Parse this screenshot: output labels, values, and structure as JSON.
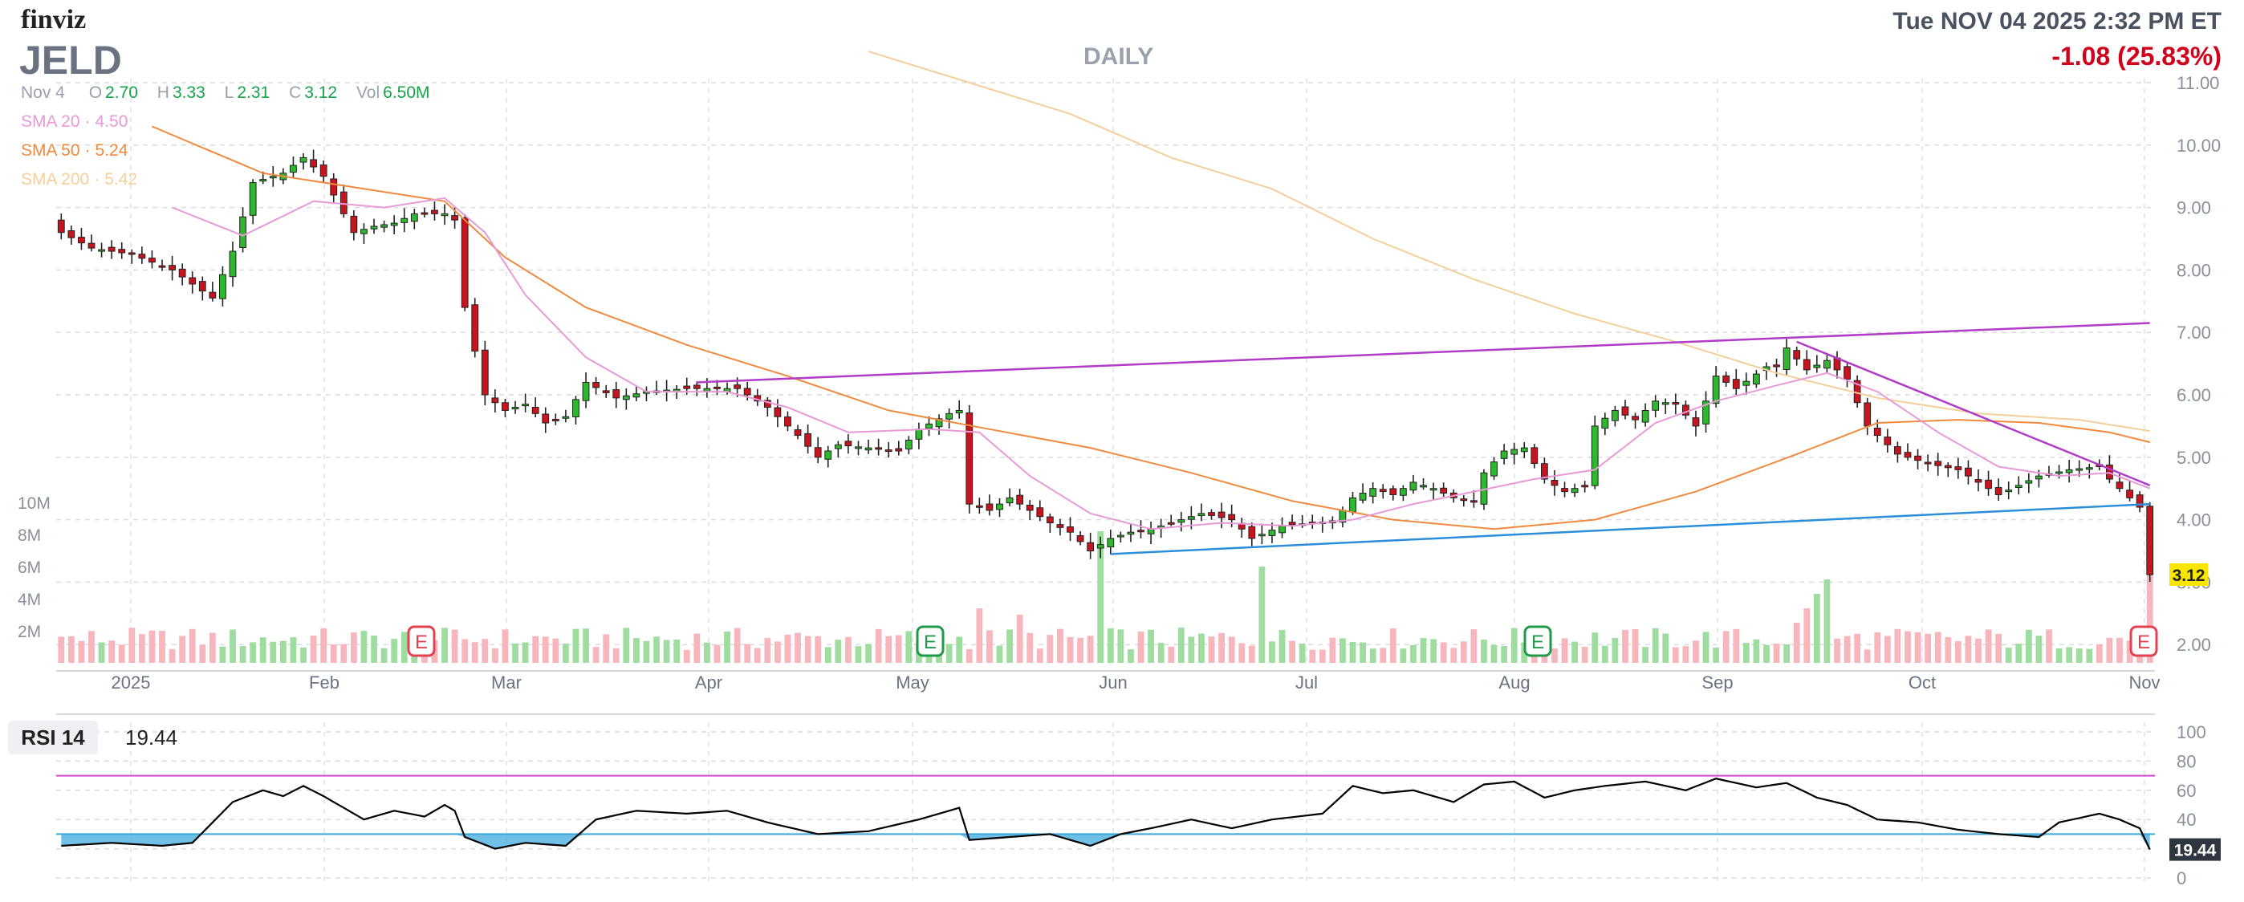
{
  "header": {
    "logo": "finviz",
    "ticker": "JELD",
    "period": "DAILY",
    "datetime": "Tue NOV 04 2025 2:32 PM ET",
    "change": "-1.08 (25.83%)"
  },
  "ohlc": {
    "date": "Nov 4",
    "o_label": "O",
    "o": "2.70",
    "h_label": "H",
    "h": "3.33",
    "l_label": "L",
    "l": "2.31",
    "c_label": "C",
    "c": "3.12",
    "vol_label": "Vol",
    "vol": "6.50M"
  },
  "sma": [
    {
      "label": "SMA 20",
      "value": "4.50",
      "color": "#e89ad6"
    },
    {
      "label": "SMA 50",
      "value": "5.24",
      "color": "#f08a3e"
    },
    {
      "label": "SMA 200",
      "value": "5.42",
      "color": "#f5cf9a"
    }
  ],
  "rsi": {
    "label": "RSI 14",
    "value": "19.44"
  },
  "colors": {
    "up": "#2db82d",
    "down": "#c8141e",
    "vol_up": "#9fdc9f",
    "vol_down": "#f7b6bc",
    "rsi_line": "#000000",
    "rsi_fill": "#56b4e3",
    "trend_purple": "#b03cc8",
    "trend_blue": "#2a8fd8"
  },
  "chart_data": {
    "type": "candlestick",
    "price_axis": {
      "ylim": [
        1.7,
        11.0
      ],
      "ticks": [
        "11.00",
        "10.00",
        "9.00",
        "8.00",
        "7.00",
        "6.00",
        "5.00",
        "4.00",
        "3.00",
        "2.00"
      ],
      "last_price_label": "3.12"
    },
    "volume_axis": {
      "ticks": [
        "10M",
        "8M",
        "6M",
        "4M",
        "2M"
      ]
    },
    "x_axis_labels": [
      "2025",
      "Feb",
      "Mar",
      "Apr",
      "May",
      "Jun",
      "Jul",
      "Aug",
      "Sep",
      "Oct",
      "Nov"
    ],
    "earnings_marker_label": "E",
    "earnings_markers": [
      {
        "label": "Feb",
        "style": "negative"
      },
      {
        "label": "May",
        "style": "positive"
      },
      {
        "label": "Aug",
        "style": "positive"
      },
      {
        "label": "Nov",
        "style": "negative"
      }
    ],
    "close_keypoints": [
      [
        0,
        8.6
      ],
      [
        3,
        8.35
      ],
      [
        7,
        8.25
      ],
      [
        11,
        8.0
      ],
      [
        15,
        7.55
      ],
      [
        17,
        8.3
      ],
      [
        19,
        9.4
      ],
      [
        22,
        9.55
      ],
      [
        24,
        9.8
      ],
      [
        26,
        9.5
      ],
      [
        27,
        9.2
      ],
      [
        29,
        8.6
      ],
      [
        31,
        8.7
      ],
      [
        33,
        8.75
      ],
      [
        35,
        8.9
      ],
      [
        38,
        8.9
      ],
      [
        39,
        8.8
      ],
      [
        40,
        7.4
      ],
      [
        42,
        6.0
      ],
      [
        44,
        5.75
      ],
      [
        46,
        5.85
      ],
      [
        48,
        5.55
      ],
      [
        50,
        5.65
      ],
      [
        52,
        6.2
      ],
      [
        55,
        5.95
      ],
      [
        58,
        6.05
      ],
      [
        62,
        6.1
      ],
      [
        65,
        6.1
      ],
      [
        67,
        6.1
      ],
      [
        70,
        5.8
      ],
      [
        73,
        5.35
      ],
      [
        75,
        5.0
      ],
      [
        77,
        5.2
      ],
      [
        80,
        5.15
      ],
      [
        83,
        5.1
      ],
      [
        85,
        5.45
      ],
      [
        88,
        5.7
      ],
      [
        89,
        5.75
      ],
      [
        90,
        4.25
      ],
      [
        92,
        4.15
      ],
      [
        94,
        4.35
      ],
      [
        96,
        4.15
      ],
      [
        98,
        3.95
      ],
      [
        100,
        3.8
      ],
      [
        102,
        3.5
      ],
      [
        104,
        3.7
      ],
      [
        106,
        3.8
      ],
      [
        108,
        3.85
      ],
      [
        110,
        3.95
      ],
      [
        113,
        4.1
      ],
      [
        116,
        4.0
      ],
      [
        118,
        3.7
      ],
      [
        121,
        3.9
      ],
      [
        124,
        3.95
      ],
      [
        126,
        3.95
      ],
      [
        128,
        4.35
      ],
      [
        130,
        4.5
      ],
      [
        132,
        4.4
      ],
      [
        134,
        4.6
      ],
      [
        136,
        4.5
      ],
      [
        138,
        4.35
      ],
      [
        140,
        4.3
      ],
      [
        141,
        4.75
      ],
      [
        143,
        5.1
      ],
      [
        145,
        5.15
      ],
      [
        147,
        4.65
      ],
      [
        149,
        4.45
      ],
      [
        151,
        4.55
      ],
      [
        152,
        5.5
      ],
      [
        154,
        5.75
      ],
      [
        156,
        5.6
      ],
      [
        158,
        5.9
      ],
      [
        160,
        5.85
      ],
      [
        162,
        5.5
      ],
      [
        164,
        6.3
      ],
      [
        166,
        6.1
      ],
      [
        169,
        6.45
      ],
      [
        170,
        6.45
      ],
      [
        171,
        6.75
      ],
      [
        173,
        6.4
      ],
      [
        175,
        6.55
      ],
      [
        177,
        6.25
      ],
      [
        179,
        5.5
      ],
      [
        182,
        5.05
      ],
      [
        185,
        4.9
      ],
      [
        188,
        4.8
      ],
      [
        190,
        4.6
      ],
      [
        192,
        4.4
      ],
      [
        194,
        4.55
      ],
      [
        196,
        4.7
      ],
      [
        199,
        4.8
      ],
      [
        202,
        4.85
      ],
      [
        203,
        4.65
      ],
      [
        205,
        4.35
      ],
      [
        206,
        4.2
      ],
      [
        207,
        3.12
      ]
    ],
    "sma20_keypoints": [
      [
        11,
        9.0
      ],
      [
        18,
        8.55
      ],
      [
        25,
        9.1
      ],
      [
        32,
        9.0
      ],
      [
        38,
        9.15
      ],
      [
        42,
        8.6
      ],
      [
        46,
        7.6
      ],
      [
        52,
        6.6
      ],
      [
        58,
        6.05
      ],
      [
        66,
        6.05
      ],
      [
        72,
        5.8
      ],
      [
        78,
        5.4
      ],
      [
        86,
        5.45
      ],
      [
        91,
        5.4
      ],
      [
        96,
        4.7
      ],
      [
        102,
        4.1
      ],
      [
        108,
        3.85
      ],
      [
        115,
        3.95
      ],
      [
        122,
        3.9
      ],
      [
        128,
        4.0
      ],
      [
        134,
        4.25
      ],
      [
        140,
        4.45
      ],
      [
        146,
        4.65
      ],
      [
        152,
        4.8
      ],
      [
        158,
        5.55
      ],
      [
        164,
        5.9
      ],
      [
        170,
        6.15
      ],
      [
        175,
        6.35
      ],
      [
        180,
        6.05
      ],
      [
        186,
        5.4
      ],
      [
        192,
        4.85
      ],
      [
        198,
        4.7
      ],
      [
        203,
        4.75
      ],
      [
        207,
        4.5
      ]
    ],
    "sma50_keypoints": [
      [
        9,
        10.3
      ],
      [
        20,
        9.55
      ],
      [
        30,
        9.3
      ],
      [
        38,
        9.1
      ],
      [
        44,
        8.2
      ],
      [
        52,
        7.4
      ],
      [
        62,
        6.8
      ],
      [
        72,
        6.3
      ],
      [
        82,
        5.75
      ],
      [
        92,
        5.45
      ],
      [
        102,
        5.15
      ],
      [
        112,
        4.75
      ],
      [
        122,
        4.3
      ],
      [
        132,
        4.0
      ],
      [
        142,
        3.85
      ],
      [
        152,
        4.0
      ],
      [
        162,
        4.45
      ],
      [
        172,
        5.05
      ],
      [
        180,
        5.55
      ],
      [
        188,
        5.6
      ],
      [
        196,
        5.55
      ],
      [
        203,
        5.4
      ],
      [
        207,
        5.24
      ]
    ],
    "sma200_keypoints": [
      [
        80,
        11.5
      ],
      [
        90,
        11.0
      ],
      [
        100,
        10.5
      ],
      [
        110,
        9.8
      ],
      [
        120,
        9.3
      ],
      [
        130,
        8.5
      ],
      [
        140,
        7.85
      ],
      [
        150,
        7.3
      ],
      [
        160,
        6.85
      ],
      [
        170,
        6.35
      ],
      [
        180,
        5.95
      ],
      [
        190,
        5.7
      ],
      [
        200,
        5.6
      ],
      [
        207,
        5.42
      ]
    ],
    "rsi_keypoints": [
      [
        0,
        22
      ],
      [
        5,
        24
      ],
      [
        10,
        22
      ],
      [
        13,
        24
      ],
      [
        17,
        52
      ],
      [
        20,
        60
      ],
      [
        22,
        56
      ],
      [
        24,
        63
      ],
      [
        26,
        56
      ],
      [
        28,
        48
      ],
      [
        30,
        40
      ],
      [
        33,
        46
      ],
      [
        36,
        42
      ],
      [
        38,
        50
      ],
      [
        39,
        46
      ],
      [
        40,
        28
      ],
      [
        43,
        20
      ],
      [
        46,
        24
      ],
      [
        50,
        22
      ],
      [
        53,
        40
      ],
      [
        57,
        46
      ],
      [
        62,
        44
      ],
      [
        66,
        46
      ],
      [
        70,
        38
      ],
      [
        75,
        30
      ],
      [
        80,
        32
      ],
      [
        85,
        40
      ],
      [
        89,
        48
      ],
      [
        90,
        26
      ],
      [
        94,
        28
      ],
      [
        98,
        30
      ],
      [
        102,
        22
      ],
      [
        105,
        30
      ],
      [
        108,
        34
      ],
      [
        112,
        40
      ],
      [
        116,
        34
      ],
      [
        120,
        40
      ],
      [
        125,
        44
      ],
      [
        128,
        63
      ],
      [
        131,
        58
      ],
      [
        134,
        60
      ],
      [
        138,
        52
      ],
      [
        141,
        64
      ],
      [
        144,
        66
      ],
      [
        147,
        55
      ],
      [
        150,
        60
      ],
      [
        153,
        63
      ],
      [
        157,
        66
      ],
      [
        161,
        60
      ],
      [
        164,
        68
      ],
      [
        168,
        62
      ],
      [
        171,
        65
      ],
      [
        174,
        55
      ],
      [
        177,
        50
      ],
      [
        180,
        40
      ],
      [
        184,
        38
      ],
      [
        188,
        33
      ],
      [
        192,
        30
      ],
      [
        196,
        28
      ],
      [
        198,
        38
      ],
      [
        202,
        44
      ],
      [
        204,
        40
      ],
      [
        206,
        34
      ],
      [
        207,
        19.44
      ]
    ],
    "rsi_axis": {
      "ticks": [
        "100",
        "80",
        "60",
        "40",
        "20",
        "0"
      ],
      "overbought": 70,
      "oversold": 30
    },
    "trendlines": [
      {
        "color": "trend_purple",
        "from": [
          63,
          6.2
        ],
        "to": [
          207,
          7.15
        ]
      },
      {
        "color": "trend_purple",
        "from": [
          172,
          6.85
        ],
        "to": [
          207,
          4.55
        ]
      },
      {
        "color": "trend_blue",
        "from": [
          104,
          3.45
        ],
        "to": [
          207,
          4.25
        ]
      }
    ]
  }
}
